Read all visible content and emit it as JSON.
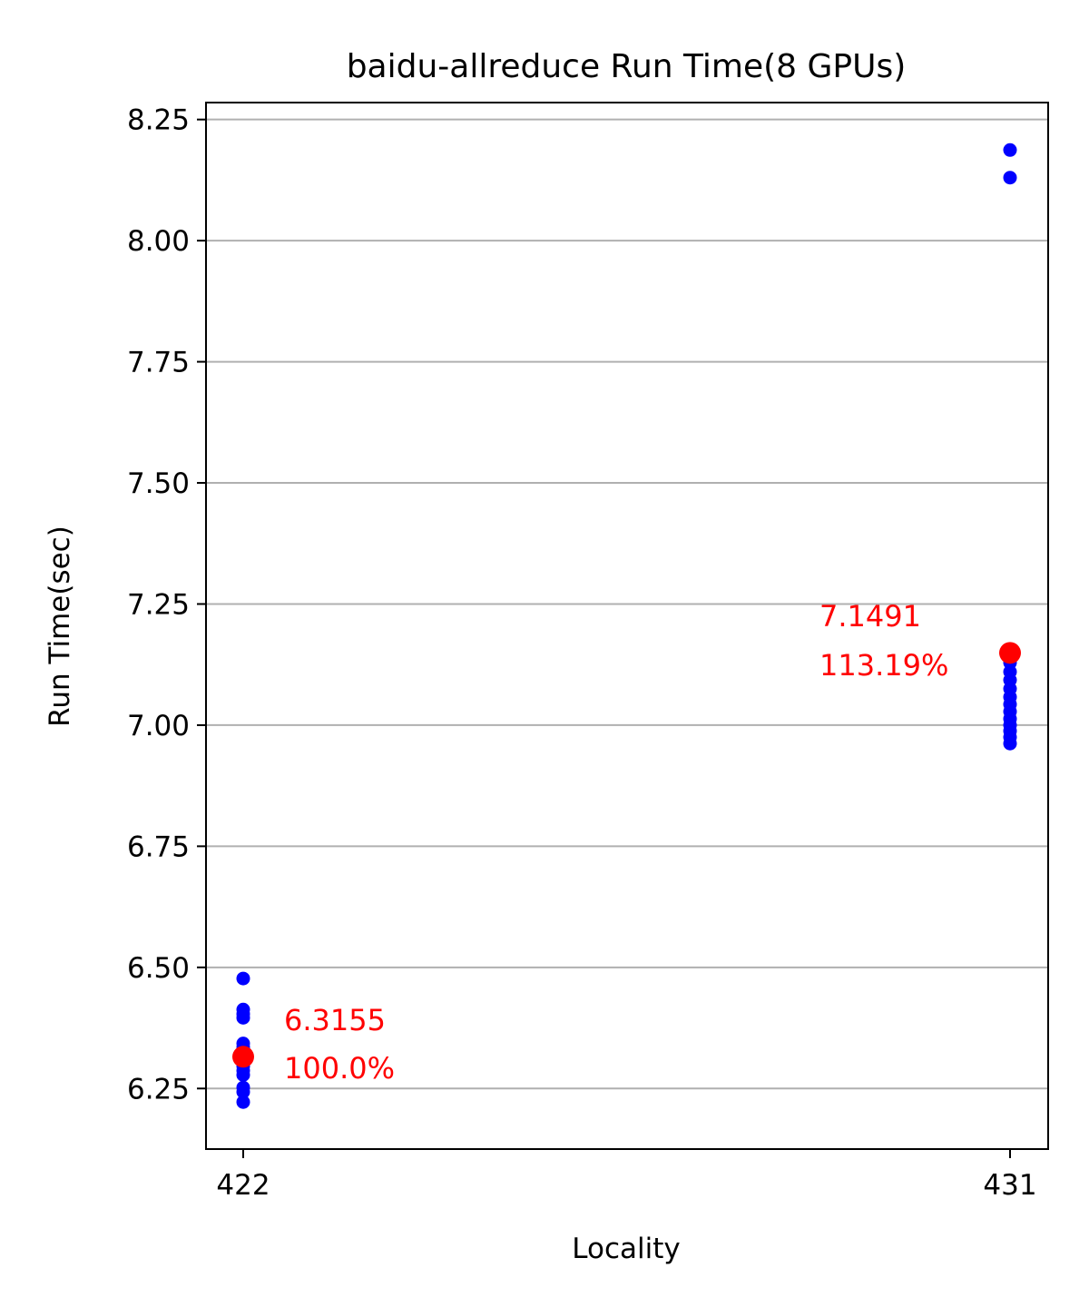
{
  "chart_data": {
    "type": "scatter",
    "title": "baidu-allreduce Run Time(8 GPUs)",
    "xlabel": "Locality",
    "ylabel": "Run Time(sec)",
    "categories": [
      "422",
      "431"
    ],
    "ylim": [
      6.125,
      8.285
    ],
    "yticks": [
      "6.25",
      "6.50",
      "6.75",
      "7.00",
      "7.25",
      "7.50",
      "7.75",
      "8.00",
      "8.25"
    ],
    "grid": "horizontal",
    "series": [
      {
        "color": "#0000ff",
        "points": [
          {
            "x": "422",
            "y": 6.477
          },
          {
            "x": "422",
            "y": 6.413
          },
          {
            "x": "422",
            "y": 6.404
          },
          {
            "x": "422",
            "y": 6.396
          },
          {
            "x": "422",
            "y": 6.343
          },
          {
            "x": "422",
            "y": 6.335
          },
          {
            "x": "422",
            "y": 6.322
          },
          {
            "x": "422",
            "y": 6.306
          },
          {
            "x": "422",
            "y": 6.296
          },
          {
            "x": "422",
            "y": 6.287
          },
          {
            "x": "422",
            "y": 6.278
          },
          {
            "x": "422",
            "y": 6.252
          },
          {
            "x": "422",
            "y": 6.243
          },
          {
            "x": "422",
            "y": 6.222
          },
          {
            "x": "431",
            "y": 8.187
          },
          {
            "x": "431",
            "y": 8.13
          },
          {
            "x": "431",
            "y": 7.129
          },
          {
            "x": "431",
            "y": 7.11
          },
          {
            "x": "431",
            "y": 7.093
          },
          {
            "x": "431",
            "y": 7.075
          },
          {
            "x": "431",
            "y": 7.058
          },
          {
            "x": "431",
            "y": 7.043
          },
          {
            "x": "431",
            "y": 7.028
          },
          {
            "x": "431",
            "y": 7.013
          },
          {
            "x": "431",
            "y": 7.0
          },
          {
            "x": "431",
            "y": 6.988
          },
          {
            "x": "431",
            "y": 6.975
          },
          {
            "x": "431",
            "y": 6.962
          }
        ]
      },
      {
        "color": "#ff0000",
        "points": [
          {
            "x": "422",
            "y": 6.3155
          },
          {
            "x": "431",
            "y": 7.1491
          }
        ]
      }
    ],
    "annotations": [
      {
        "x": "422",
        "value": "6.3155",
        "percent": "100.0%",
        "color": "#ff0000"
      },
      {
        "x": "431",
        "value": "7.1491",
        "percent": "113.19%",
        "color": "#ff0000"
      }
    ]
  }
}
